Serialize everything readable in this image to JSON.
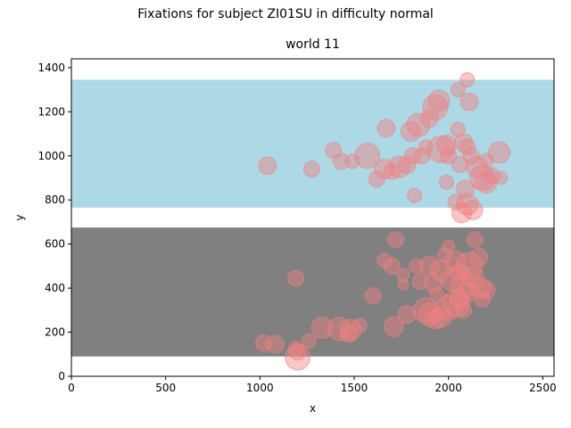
{
  "chart_data": {
    "type": "scatter",
    "suptitle": "Fixations for subject ZI01SU in difficulty normal",
    "title": "world 11",
    "xlabel": "x",
    "ylabel": "y",
    "xlim": [
      0,
      2560
    ],
    "ylim": [
      0,
      1440
    ],
    "xticks": [
      0,
      500,
      1000,
      1500,
      2000,
      2500
    ],
    "yticks": [
      0,
      200,
      400,
      600,
      800,
      1000,
      1200,
      1400
    ],
    "regions": [
      {
        "name": "upper-band",
        "color": "#add8e6",
        "y_range": [
          765,
          1345
        ]
      },
      {
        "name": "lower-band",
        "color": "#808080",
        "y_range": [
          90,
          675
        ]
      }
    ],
    "marker_color": "#f08080",
    "marker_alpha": 0.45,
    "points": [
      {
        "x": 1040,
        "y": 955,
        "s": 10
      },
      {
        "x": 1275,
        "y": 940,
        "s": 9
      },
      {
        "x": 1390,
        "y": 1025,
        "s": 9
      },
      {
        "x": 1430,
        "y": 975,
        "s": 9
      },
      {
        "x": 1490,
        "y": 975,
        "s": 8
      },
      {
        "x": 1570,
        "y": 1000,
        "s": 14
      },
      {
        "x": 1620,
        "y": 895,
        "s": 9
      },
      {
        "x": 1660,
        "y": 940,
        "s": 11
      },
      {
        "x": 1670,
        "y": 1125,
        "s": 10
      },
      {
        "x": 1700,
        "y": 930,
        "s": 9
      },
      {
        "x": 1740,
        "y": 950,
        "s": 12
      },
      {
        "x": 1780,
        "y": 960,
        "s": 10
      },
      {
        "x": 1800,
        "y": 1110,
        "s": 11
      },
      {
        "x": 1810,
        "y": 1000,
        "s": 9
      },
      {
        "x": 1820,
        "y": 820,
        "s": 8
      },
      {
        "x": 1840,
        "y": 1140,
        "s": 13
      },
      {
        "x": 1860,
        "y": 1000,
        "s": 9
      },
      {
        "x": 1880,
        "y": 1040,
        "s": 8
      },
      {
        "x": 1900,
        "y": 1170,
        "s": 10
      },
      {
        "x": 1930,
        "y": 1220,
        "s": 14
      },
      {
        "x": 1950,
        "y": 1250,
        "s": 12
      },
      {
        "x": 1960,
        "y": 1030,
        "s": 15
      },
      {
        "x": 1990,
        "y": 1050,
        "s": 11
      },
      {
        "x": 2000,
        "y": 1000,
        "s": 9
      },
      {
        "x": 2050,
        "y": 1300,
        "s": 8
      },
      {
        "x": 2100,
        "y": 1345,
        "s": 8
      },
      {
        "x": 2110,
        "y": 1245,
        "s": 10
      },
      {
        "x": 2050,
        "y": 1120,
        "s": 8
      },
      {
        "x": 2080,
        "y": 1060,
        "s": 10
      },
      {
        "x": 2100,
        "y": 1040,
        "s": 9
      },
      {
        "x": 2120,
        "y": 1000,
        "s": 9
      },
      {
        "x": 2150,
        "y": 950,
        "s": 12
      },
      {
        "x": 2180,
        "y": 900,
        "s": 14
      },
      {
        "x": 2200,
        "y": 880,
        "s": 12
      },
      {
        "x": 2230,
        "y": 910,
        "s": 9
      },
      {
        "x": 2270,
        "y": 1015,
        "s": 12
      },
      {
        "x": 2280,
        "y": 900,
        "s": 7
      },
      {
        "x": 2060,
        "y": 960,
        "s": 9
      },
      {
        "x": 1990,
        "y": 880,
        "s": 8
      },
      {
        "x": 2040,
        "y": 790,
        "s": 9
      },
      {
        "x": 2070,
        "y": 740,
        "s": 11
      },
      {
        "x": 2100,
        "y": 780,
        "s": 12
      },
      {
        "x": 2130,
        "y": 755,
        "s": 11
      },
      {
        "x": 2090,
        "y": 850,
        "s": 10
      },
      {
        "x": 2200,
        "y": 980,
        "s": 8
      },
      {
        "x": 1720,
        "y": 620,
        "s": 9
      },
      {
        "x": 1660,
        "y": 525,
        "s": 8
      },
      {
        "x": 1700,
        "y": 500,
        "s": 9
      },
      {
        "x": 1760,
        "y": 460,
        "s": 7
      },
      {
        "x": 1760,
        "y": 415,
        "s": 6
      },
      {
        "x": 1600,
        "y": 365,
        "s": 9
      },
      {
        "x": 1830,
        "y": 500,
        "s": 8
      },
      {
        "x": 1850,
        "y": 430,
        "s": 9
      },
      {
        "x": 1900,
        "y": 500,
        "s": 11
      },
      {
        "x": 1920,
        "y": 420,
        "s": 10
      },
      {
        "x": 1940,
        "y": 370,
        "s": 8
      },
      {
        "x": 1960,
        "y": 480,
        "s": 12
      },
      {
        "x": 1980,
        "y": 550,
        "s": 8
      },
      {
        "x": 2000,
        "y": 590,
        "s": 7
      },
      {
        "x": 2020,
        "y": 440,
        "s": 13
      },
      {
        "x": 2040,
        "y": 520,
        "s": 12
      },
      {
        "x": 2060,
        "y": 470,
        "s": 10
      },
      {
        "x": 2080,
        "y": 410,
        "s": 14
      },
      {
        "x": 2100,
        "y": 380,
        "s": 11
      },
      {
        "x": 2110,
        "y": 500,
        "s": 15
      },
      {
        "x": 2130,
        "y": 450,
        "s": 12
      },
      {
        "x": 2140,
        "y": 620,
        "s": 9
      },
      {
        "x": 2160,
        "y": 540,
        "s": 10
      },
      {
        "x": 2170,
        "y": 400,
        "s": 12
      },
      {
        "x": 2180,
        "y": 350,
        "s": 9
      },
      {
        "x": 2200,
        "y": 390,
        "s": 10
      },
      {
        "x": 1780,
        "y": 280,
        "s": 10
      },
      {
        "x": 1900,
        "y": 280,
        "s": 13
      },
      {
        "x": 1930,
        "y": 260,
        "s": 11
      },
      {
        "x": 1960,
        "y": 270,
        "s": 12
      },
      {
        "x": 2000,
        "y": 310,
        "s": 14
      },
      {
        "x": 2040,
        "y": 330,
        "s": 15
      },
      {
        "x": 2060,
        "y": 350,
        "s": 11
      },
      {
        "x": 2080,
        "y": 300,
        "s": 9
      },
      {
        "x": 1880,
        "y": 300,
        "s": 14
      },
      {
        "x": 1710,
        "y": 225,
        "s": 11
      },
      {
        "x": 1530,
        "y": 230,
        "s": 8
      },
      {
        "x": 1480,
        "y": 210,
        "s": 12
      },
      {
        "x": 1470,
        "y": 190,
        "s": 9
      },
      {
        "x": 1420,
        "y": 215,
        "s": 13
      },
      {
        "x": 1330,
        "y": 220,
        "s": 12
      },
      {
        "x": 1260,
        "y": 160,
        "s": 8
      },
      {
        "x": 1190,
        "y": 125,
        "s": 8
      },
      {
        "x": 1200,
        "y": 110,
        "s": 9
      },
      {
        "x": 1200,
        "y": 85,
        "s": 14
      },
      {
        "x": 1080,
        "y": 145,
        "s": 10
      },
      {
        "x": 1020,
        "y": 150,
        "s": 9
      },
      {
        "x": 1190,
        "y": 445,
        "s": 9
      }
    ]
  }
}
